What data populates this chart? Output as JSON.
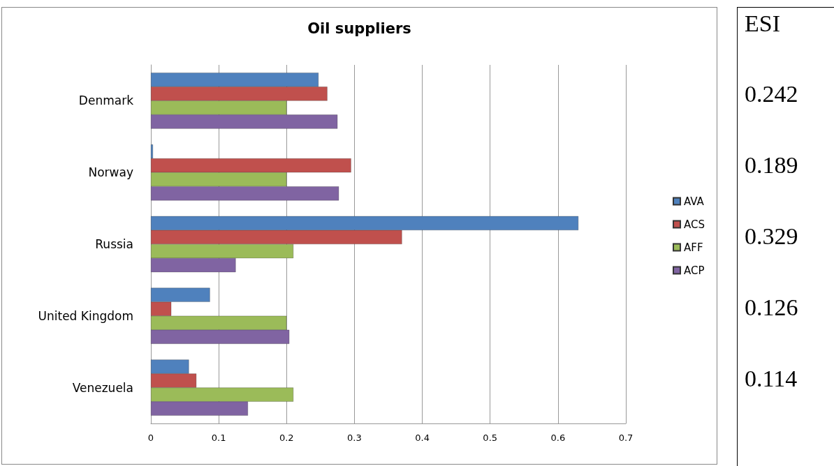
{
  "chart_data": {
    "type": "bar",
    "orientation": "horizontal",
    "title": "Oil suppliers",
    "categories": [
      "Denmark",
      "Norway",
      "Russia",
      "United Kingdom",
      "Venezuela"
    ],
    "series": [
      {
        "name": "AVA",
        "color": "#4f81bd",
        "values": [
          0.247,
          0.003,
          0.63,
          0.087,
          0.056
        ]
      },
      {
        "name": "ACS",
        "color": "#c0504d",
        "values": [
          0.26,
          0.295,
          0.37,
          0.03,
          0.067
        ]
      },
      {
        "name": "AFF",
        "color": "#9bbb59",
        "values": [
          0.2,
          0.2,
          0.21,
          0.2,
          0.21
        ]
      },
      {
        "name": "ACP",
        "color": "#8064a2",
        "values": [
          0.275,
          0.277,
          0.125,
          0.204,
          0.143
        ]
      }
    ],
    "xlim": [
      0,
      0.7
    ],
    "xticks": [
      0,
      0.1,
      0.2,
      0.3,
      0.4,
      0.5,
      0.6,
      0.7
    ],
    "grid": "x",
    "legend": "right",
    "annotations": [
      "ESI",
      "0.242",
      "0.189",
      "0.329",
      "0.126",
      "0.114"
    ]
  }
}
